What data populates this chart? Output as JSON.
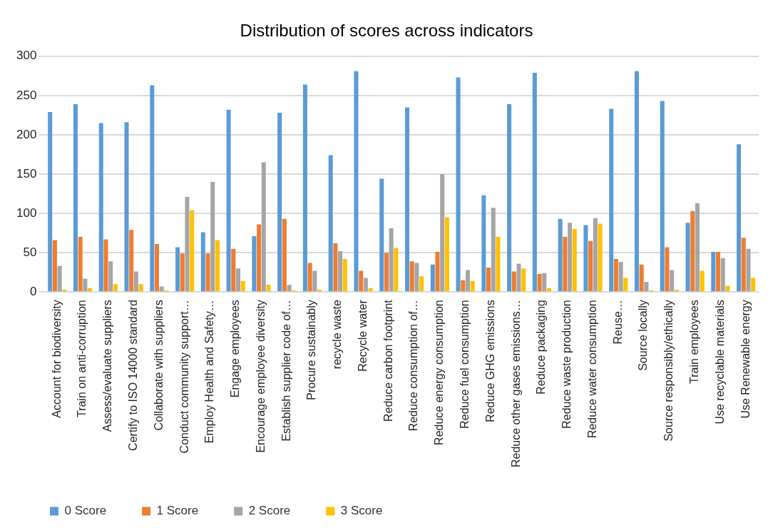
{
  "chart_data": {
    "type": "bar",
    "title": "Distribution of scores across indicators",
    "categories": [
      "Account for biodiversity",
      "Train on anti-corruption",
      "Assess/evaluate suppliers",
      "Certify to ISO 14000 standard",
      "Collaborate with suppliers",
      "Conduct community support…",
      "Employ Health and Safety…",
      "Engage employees",
      "Encourage employee diversity",
      "Establish supplier code of…",
      "Procure sustainably",
      "recycle waste",
      "Recycle water",
      "Reduce carbon footprint",
      "Reduce consumption of…",
      "Reduce energy consumption",
      "Reduce fuel consumption",
      "Reduce GHG emissions",
      "Reduce other gases emissions…",
      "Reduce packaging",
      "Reduce waste production",
      "Reduce water consumption",
      "Reuse…",
      "Source locally",
      "Source responsibly/ethically",
      "Train employees",
      "Use recyclable materials",
      "Use Renewable energy"
    ],
    "series": [
      {
        "name": "0 Score",
        "color": "#5b9bd5",
        "values": [
          229,
          239,
          215,
          216,
          263,
          57,
          76,
          232,
          71,
          228,
          264,
          174,
          281,
          144,
          235,
          35,
          273,
          123,
          239,
          279,
          93,
          85,
          233,
          281,
          243,
          88,
          51,
          188
        ]
      },
      {
        "name": "1 Score",
        "color": "#ed7d31",
        "values": [
          66,
          70,
          67,
          79,
          61,
          49,
          49,
          55,
          86,
          93,
          37,
          62,
          27,
          50,
          39,
          51,
          15,
          31,
          26,
          23,
          70,
          65,
          42,
          35,
          57,
          103,
          51,
          69
        ]
      },
      {
        "name": "2 Score",
        "color": "#a5a5a5",
        "values": [
          33,
          17,
          39,
          26,
          7,
          121,
          140,
          30,
          165,
          9,
          27,
          52,
          18,
          81,
          37,
          150,
          28,
          107,
          36,
          24,
          88,
          94,
          38,
          13,
          28,
          113,
          43,
          55
        ]
      },
      {
        "name": "3 Score",
        "color": "#ffc000",
        "values": [
          3,
          5,
          10,
          10,
          2,
          104,
          66,
          14,
          9,
          2,
          3,
          42,
          5,
          56,
          20,
          95,
          14,
          70,
          30,
          5,
          80,
          87,
          18,
          2,
          3,
          27,
          8,
          18
        ]
      }
    ],
    "ylim": [
      0,
      300
    ],
    "yticks": [
      0,
      50,
      100,
      150,
      200,
      250,
      300
    ],
    "grid": "y",
    "legend": "bottom left"
  }
}
